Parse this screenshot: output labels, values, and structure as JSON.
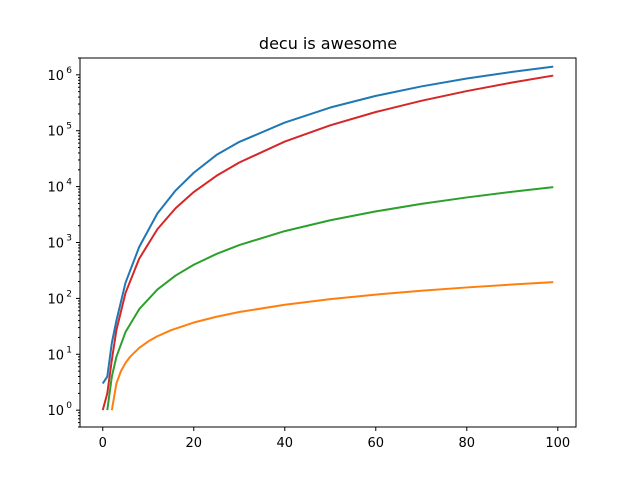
{
  "chart_data": {
    "type": "line",
    "title": "decu is awesome",
    "xlabel": "",
    "ylabel": "",
    "xlim": [
      -5,
      104
    ],
    "ylim": [
      0.5,
      2000000
    ],
    "yscale": "log",
    "grid": false,
    "legend": "none",
    "x_ticks": [
      0,
      20,
      40,
      60,
      80,
      100
    ],
    "x_tick_labels": [
      "0",
      "20",
      "40",
      "60",
      "80",
      "100"
    ],
    "y_ticks": [
      1,
      10,
      100,
      1000,
      10000,
      100000,
      1000000
    ],
    "y_tick_labels": [
      {
        "base": "10",
        "exp": "0"
      },
      {
        "base": "10",
        "exp": "1"
      },
      {
        "base": "10",
        "exp": "2"
      },
      {
        "base": "10",
        "exp": "3"
      },
      {
        "base": "10",
        "exp": "4"
      },
      {
        "base": "10",
        "exp": "5"
      },
      {
        "base": "10",
        "exp": "6"
      }
    ],
    "series": [
      {
        "color": "#1f77b4",
        "x": [
          0,
          1,
          2,
          3,
          5,
          8,
          12,
          16,
          20,
          25,
          30,
          40,
          50,
          60,
          70,
          80,
          90,
          99
        ],
        "y": [
          3,
          4,
          16,
          40,
          190,
          830,
          3300,
          8500,
          17700,
          36900,
          63000,
          140000,
          260000,
          420000,
          620000,
          860000,
          1130000,
          1400000
        ]
      },
      {
        "color": "#ff7f0e",
        "x": [
          2,
          3,
          4,
          5,
          6,
          8,
          10,
          12,
          15,
          20,
          25,
          30,
          40,
          50,
          60,
          70,
          80,
          90,
          99
        ],
        "y": [
          1,
          3,
          5,
          7,
          9,
          13,
          17,
          21,
          27,
          37,
          47,
          57,
          77,
          97,
          117,
          137,
          157,
          177,
          195
        ]
      },
      {
        "color": "#2ca02c",
        "x": [
          1,
          2,
          3,
          5,
          8,
          12,
          16,
          20,
          25,
          30,
          40,
          50,
          60,
          70,
          80,
          90,
          99
        ],
        "y": [
          1,
          4,
          9,
          25,
          64,
          144,
          256,
          400,
          625,
          900,
          1600,
          2500,
          3600,
          4900,
          6400,
          8100,
          9801
        ]
      },
      {
        "color": "#d62728",
        "x": [
          0,
          1,
          2,
          3,
          5,
          8,
          12,
          16,
          20,
          25,
          30,
          40,
          50,
          60,
          70,
          80,
          90,
          99
        ],
        "y": [
          1,
          2,
          8,
          27,
          125,
          512,
          1728,
          4096,
          8000,
          15625,
          27000,
          64000,
          125000,
          216000,
          343000,
          512000,
          729000,
          970299
        ]
      }
    ]
  }
}
